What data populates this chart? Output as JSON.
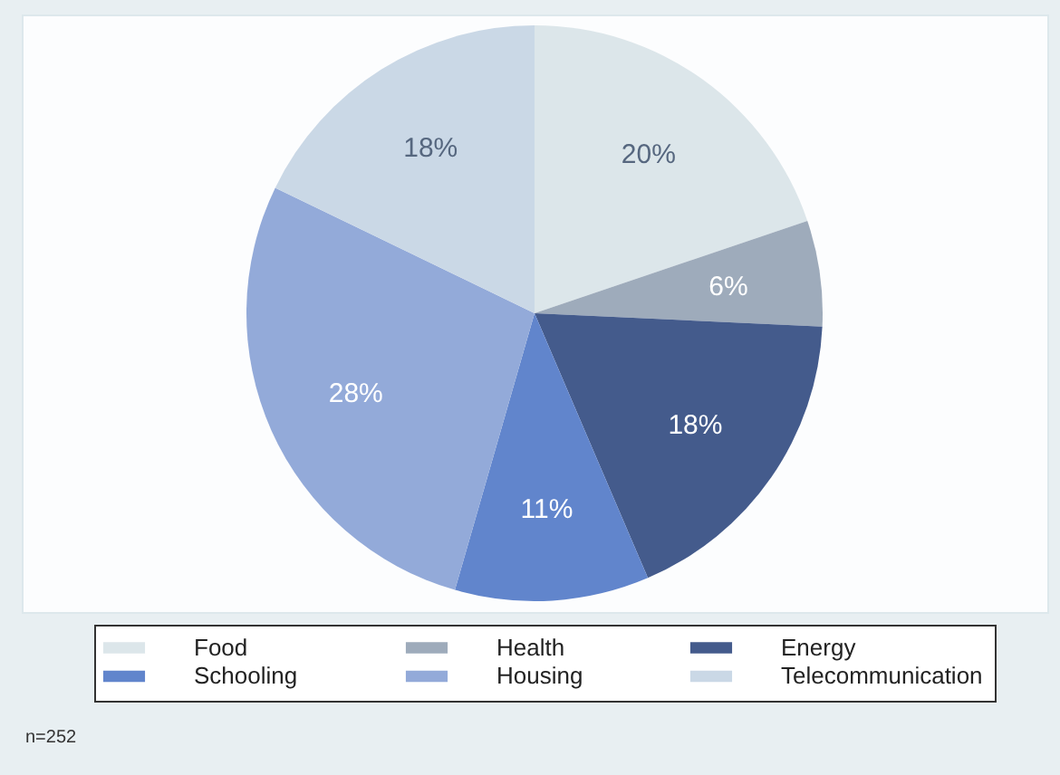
{
  "chart_data": {
    "type": "pie",
    "categories": [
      "Food",
      "Health",
      "Energy",
      "Schooling",
      "Housing",
      "Telecommunication"
    ],
    "values": [
      20,
      6,
      18,
      11,
      28,
      18
    ],
    "value_labels": [
      "20%",
      "6%",
      "18%",
      "11%",
      "28%",
      "18%"
    ],
    "colors": [
      "#dce6ea",
      "#9eabbb",
      "#445b8c",
      "#6185cc",
      "#93aad9",
      "#cad8e6"
    ],
    "legend": "bottom",
    "annotations": [
      "n=252"
    ]
  }
}
